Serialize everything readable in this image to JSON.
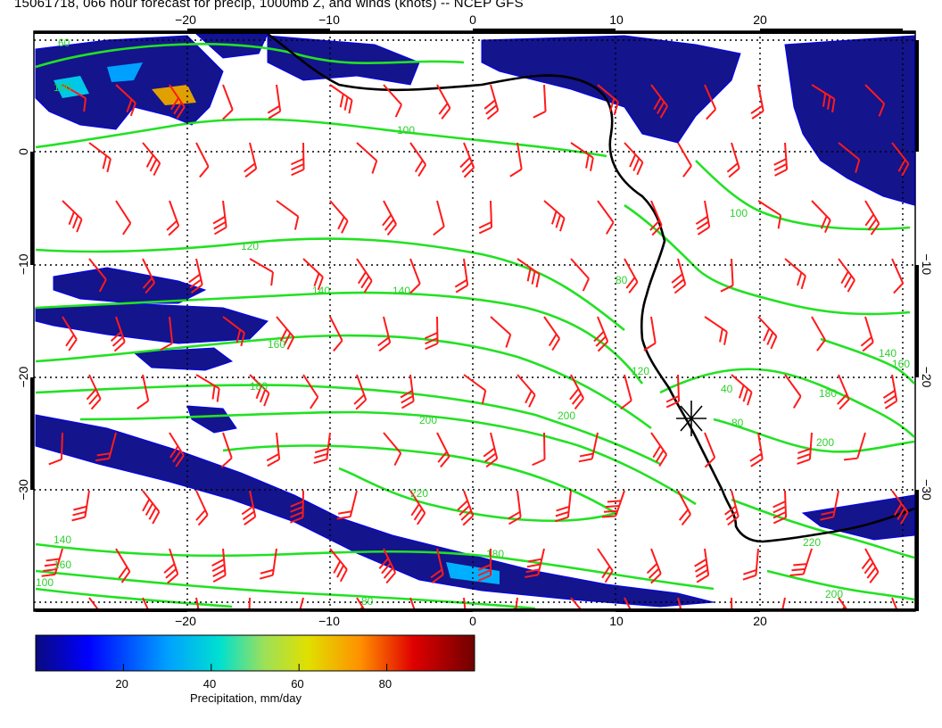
{
  "title": "15061718, 066 hour forecast for precip, 1000mb Z, and winds (knots) -- NCEP GFS",
  "map": {
    "lon_range": [
      -30,
      30
    ],
    "lat_range": [
      -41,
      10
    ],
    "lon_tick_labels": [
      "−20",
      "−10",
      "0",
      "10",
      "20"
    ],
    "lon_tick_values": [
      -20,
      -10,
      0,
      10,
      20
    ],
    "lat_tick_labels": [
      "0",
      "−10",
      "−20",
      "−30"
    ],
    "lat_tick_values": [
      0,
      -10,
      -20,
      -30
    ],
    "right_lat_tick_labels": [
      "−10",
      "−20",
      "−30"
    ],
    "right_lat_tick_values": [
      -10,
      -20,
      -30
    ],
    "grid": true,
    "contour_color": "#22e122",
    "coast_color": "#000000",
    "barb_color": "#ff1a1a",
    "contour_labels": [
      "60",
      "100",
      "100",
      "120",
      "140",
      "140",
      "160",
      "180",
      "200",
      "220",
      "180",
      "200",
      "120",
      "140",
      "160",
      "100",
      "80",
      "40",
      "80",
      "180",
      "200",
      "220",
      "200",
      "140",
      "160",
      "100",
      "80"
    ]
  },
  "marker": {
    "name": "station-marker-icon",
    "lon": 15,
    "lat": -23.5
  },
  "colorbar": {
    "label": "Precipitation, mm/day",
    "tick_labels": [
      "20",
      "40",
      "60",
      "80"
    ],
    "tick_values": [
      20,
      40,
      60,
      80
    ],
    "range": [
      0,
      100
    ],
    "colors": [
      "#0a0a80",
      "#0000ff",
      "#00a0ff",
      "#00e0d0",
      "#9ce05a",
      "#e0e000",
      "#ff9000",
      "#e00000",
      "#700000"
    ]
  }
}
